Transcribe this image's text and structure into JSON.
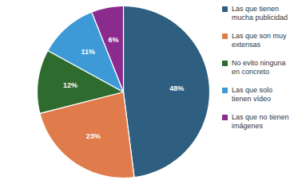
{
  "chart_data": {
    "type": "pie",
    "categories": [
      "Las que tienen mucha publicidad",
      "Las que son muy extensas",
      "No evito ninguna en concreto",
      "Las que solo tienen vídeo",
      "Las que no tienen imágenes"
    ],
    "values": [
      48,
      23,
      12,
      11,
      6
    ],
    "value_labels": [
      "48%",
      "23%",
      "12%",
      "11%",
      "6%"
    ],
    "colors": [
      "#2e5f80",
      "#e07c4b",
      "#2e6b2f",
      "#3d9ad6",
      "#8c2b8e"
    ],
    "data_labels": true,
    "legend": "right"
  }
}
